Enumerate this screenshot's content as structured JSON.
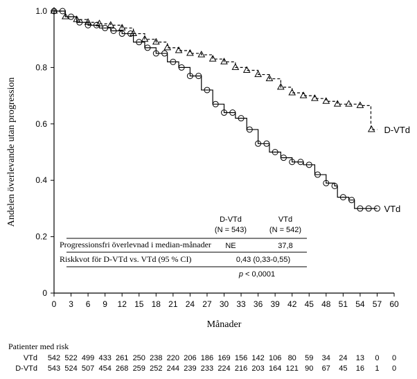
{
  "chart_data": {
    "type": "line",
    "xlabel": "Månader",
    "ylabel": "Andelen överlevande utan progression",
    "xlim": [
      0,
      60
    ],
    "ylim": [
      0,
      1
    ],
    "xticks": [
      0,
      3,
      6,
      9,
      12,
      15,
      18,
      21,
      24,
      27,
      30,
      33,
      36,
      39,
      42,
      45,
      48,
      51,
      54,
      57,
      60
    ],
    "yticks": [
      "0",
      "0.2",
      "0.4",
      "0.6",
      "0.8",
      "1.0"
    ],
    "grid": false,
    "series": [
      {
        "name": "D-VTd",
        "marker": "triangle",
        "line_style": "dashed",
        "x": [
          0,
          2,
          4,
          6,
          8,
          10,
          12,
          14,
          16,
          18,
          20,
          22,
          24,
          26,
          28,
          30,
          32,
          34,
          36,
          38,
          40,
          42,
          44,
          46,
          48,
          50,
          52,
          54,
          55.9,
          55.9,
          57
        ],
        "y": [
          1.0,
          0.98,
          0.97,
          0.96,
          0.955,
          0.95,
          0.94,
          0.92,
          0.9,
          0.89,
          0.87,
          0.86,
          0.85,
          0.845,
          0.83,
          0.82,
          0.8,
          0.79,
          0.775,
          0.76,
          0.73,
          0.71,
          0.7,
          0.69,
          0.68,
          0.67,
          0.67,
          0.665,
          0.665,
          0.58,
          0.58
        ]
      },
      {
        "name": "VTd",
        "marker": "circle",
        "line_style": "solid",
        "x": [
          0,
          2,
          4,
          6,
          8,
          10,
          12,
          14,
          16,
          18,
          20,
          22,
          24,
          26,
          28,
          30,
          32,
          34,
          36,
          38,
          40,
          42,
          44,
          46,
          48,
          49.5,
          50,
          52,
          53,
          55,
          57
        ],
        "y": [
          1.0,
          0.98,
          0.96,
          0.95,
          0.94,
          0.93,
          0.92,
          0.89,
          0.87,
          0.85,
          0.82,
          0.8,
          0.77,
          0.72,
          0.67,
          0.64,
          0.62,
          0.58,
          0.53,
          0.5,
          0.48,
          0.465,
          0.455,
          0.42,
          0.39,
          0.38,
          0.34,
          0.33,
          0.3,
          0.3,
          0.3
        ]
      }
    ],
    "series_labels": [
      "D-VTd",
      "VTd"
    ],
    "inset_table": {
      "col_headers": [
        [
          "D-VTd",
          "(N = 543)"
        ],
        [
          "VTd",
          "(N = 542)"
        ]
      ],
      "rows": [
        {
          "label": "Progressionsfri överlevnad i median-månader",
          "dvtd": "NE",
          "vtd": "37,8"
        },
        {
          "label": "Riskkvot för D-VTd  vs. VTd (95 % CI)",
          "value": "0,43 (0,33-0,55)"
        }
      ],
      "p_prefix": "p",
      "p_suffix": " < 0,0001"
    },
    "risk_table": {
      "title": "Patienter med risk",
      "rows": [
        {
          "label": "VTd",
          "values": [
            "542",
            "522",
            "499",
            "433",
            "261",
            "250",
            "238",
            "220",
            "206",
            "186",
            "169",
            "156",
            "142",
            "106",
            "80",
            "59",
            "34",
            "24",
            "13",
            "0",
            "0"
          ]
        },
        {
          "label": "D-VTd",
          "values": [
            "543",
            "524",
            "507",
            "454",
            "268",
            "259",
            "252",
            "244",
            "239",
            "233",
            "224",
            "216",
            "203",
            "164",
            "121",
            "90",
            "67",
            "45",
            "16",
            "1",
            "0"
          ]
        }
      ]
    }
  }
}
